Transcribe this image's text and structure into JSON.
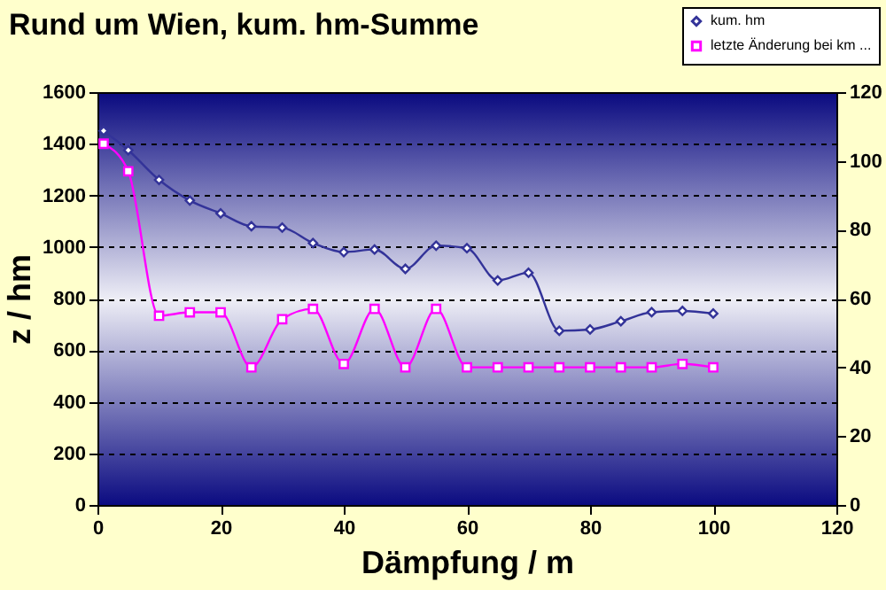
{
  "chart_data": {
    "type": "line",
    "title": "Rund um Wien, kum. hm-Summe",
    "xlabel": "Dämpfung / m",
    "ylabel": "z / hm",
    "x": [
      1,
      5,
      10,
      15,
      20,
      25,
      30,
      35,
      40,
      45,
      50,
      55,
      60,
      65,
      70,
      75,
      80,
      85,
      90,
      95,
      100
    ],
    "series": [
      {
        "name": "kum. hm",
        "color": "#333399",
        "marker": "diamond",
        "values": [
          1450,
          1375,
          1260,
          1180,
          1130,
          1080,
          1075,
          1015,
          980,
          990,
          915,
          1005,
          995,
          870,
          900,
          675,
          680,
          712,
          747,
          752,
          742
        ]
      },
      {
        "name": "letzte Änderung bei km ...",
        "color": "#ff00ff",
        "marker": "square",
        "axis": "y2",
        "values": [
          105,
          97,
          55,
          56,
          56,
          40,
          54,
          57,
          41,
          57,
          40,
          57,
          40,
          40,
          40,
          40,
          40,
          40,
          40,
          41,
          40
        ]
      }
    ],
    "xlim": [
      0,
      120
    ],
    "xticks": [
      0,
      20,
      40,
      60,
      80,
      100,
      120
    ],
    "ylim": [
      0,
      1600
    ],
    "yticks": [
      0,
      200,
      400,
      600,
      800,
      1000,
      1200,
      1400,
      1600
    ],
    "y2lim": [
      0,
      120
    ],
    "y2ticks": [
      0,
      20,
      40,
      60,
      80,
      100,
      120
    ],
    "grid": "y",
    "legend": "top right"
  }
}
